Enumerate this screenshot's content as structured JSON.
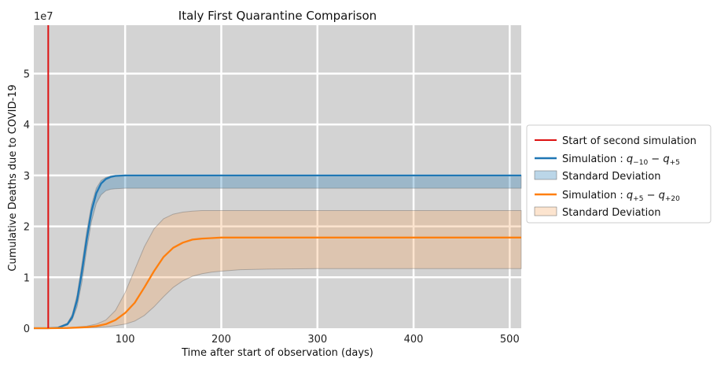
{
  "chart_data": {
    "type": "line",
    "title": "Italy First Quarantine Comparison",
    "xlabel": "Time after start of observation (days)",
    "ylabel": "Cumulative Deaths due to COVID-19",
    "y_multiplier": "1e7",
    "xlim": [
      5,
      512
    ],
    "ylim": [
      0,
      5.95
    ],
    "xticks": [
      100,
      200,
      300,
      400,
      500
    ],
    "yticks": [
      0,
      1,
      2,
      3,
      4,
      5
    ],
    "grid": true,
    "legend_position": "outside-right",
    "vline": {
      "x": 20,
      "label": "Start of second simulation",
      "color": "#dd1111"
    },
    "series": [
      {
        "name": "Simulation : q−10 − q+5",
        "name_main": "Simulation : ",
        "name_q1": "q",
        "name_q1_sub": "−10",
        "name_sep": " − ",
        "name_q2": "q",
        "name_q2_sub": "+5",
        "color": "#1f77b4",
        "band_color": "#1f77b4",
        "band_label": "Standard Deviation",
        "x": [
          5,
          20,
          30,
          40,
          45,
          50,
          55,
          60,
          65,
          70,
          75,
          80,
          85,
          90,
          100,
          110,
          120,
          150,
          200,
          300,
          400,
          512
        ],
        "y": [
          0,
          0,
          0.01,
          0.08,
          0.22,
          0.55,
          1.1,
          1.75,
          2.3,
          2.65,
          2.84,
          2.93,
          2.97,
          2.99,
          3.0,
          3.0,
          3.0,
          3.0,
          3.0,
          3.0,
          3.0,
          3.0
        ],
        "y_upper": [
          0,
          0,
          0.02,
          0.1,
          0.27,
          0.65,
          1.25,
          1.9,
          2.42,
          2.75,
          2.9,
          2.96,
          2.99,
          3.0,
          3.0,
          3.0,
          3.0,
          3.0,
          3.0,
          3.0,
          3.0,
          3.0
        ],
        "y_lower": [
          0,
          0,
          0.005,
          0.06,
          0.17,
          0.42,
          0.9,
          1.55,
          2.1,
          2.45,
          2.62,
          2.7,
          2.73,
          2.74,
          2.75,
          2.75,
          2.75,
          2.75,
          2.75,
          2.75,
          2.75,
          2.75
        ]
      },
      {
        "name": "Simulation : q+5 − q+20",
        "name_main": "Simulation : ",
        "name_q1": "q",
        "name_q1_sub": "+5",
        "name_sep": " − ",
        "name_q2": "q",
        "name_q2_sub": "+20",
        "color": "#ff7f0e",
        "band_color": "#f4a460",
        "band_label": "Standard Deviation",
        "x": [
          5,
          20,
          40,
          60,
          70,
          80,
          90,
          100,
          110,
          120,
          130,
          140,
          150,
          160,
          170,
          180,
          190,
          200,
          220,
          250,
          300,
          400,
          512
        ],
        "y": [
          0,
          0,
          0.005,
          0.02,
          0.04,
          0.08,
          0.16,
          0.3,
          0.5,
          0.8,
          1.12,
          1.4,
          1.58,
          1.68,
          1.74,
          1.76,
          1.77,
          1.78,
          1.78,
          1.78,
          1.78,
          1.78,
          1.78
        ],
        "y_upper": [
          0,
          0,
          0.01,
          0.04,
          0.08,
          0.16,
          0.35,
          0.7,
          1.15,
          1.6,
          1.95,
          2.15,
          2.24,
          2.28,
          2.3,
          2.31,
          2.31,
          2.31,
          2.31,
          2.31,
          2.31,
          2.31,
          2.31
        ],
        "y_lower": [
          0,
          0,
          0.002,
          0.008,
          0.015,
          0.03,
          0.05,
          0.08,
          0.14,
          0.25,
          0.42,
          0.62,
          0.8,
          0.93,
          1.02,
          1.07,
          1.1,
          1.12,
          1.15,
          1.16,
          1.17,
          1.17,
          1.17
        ]
      }
    ]
  }
}
